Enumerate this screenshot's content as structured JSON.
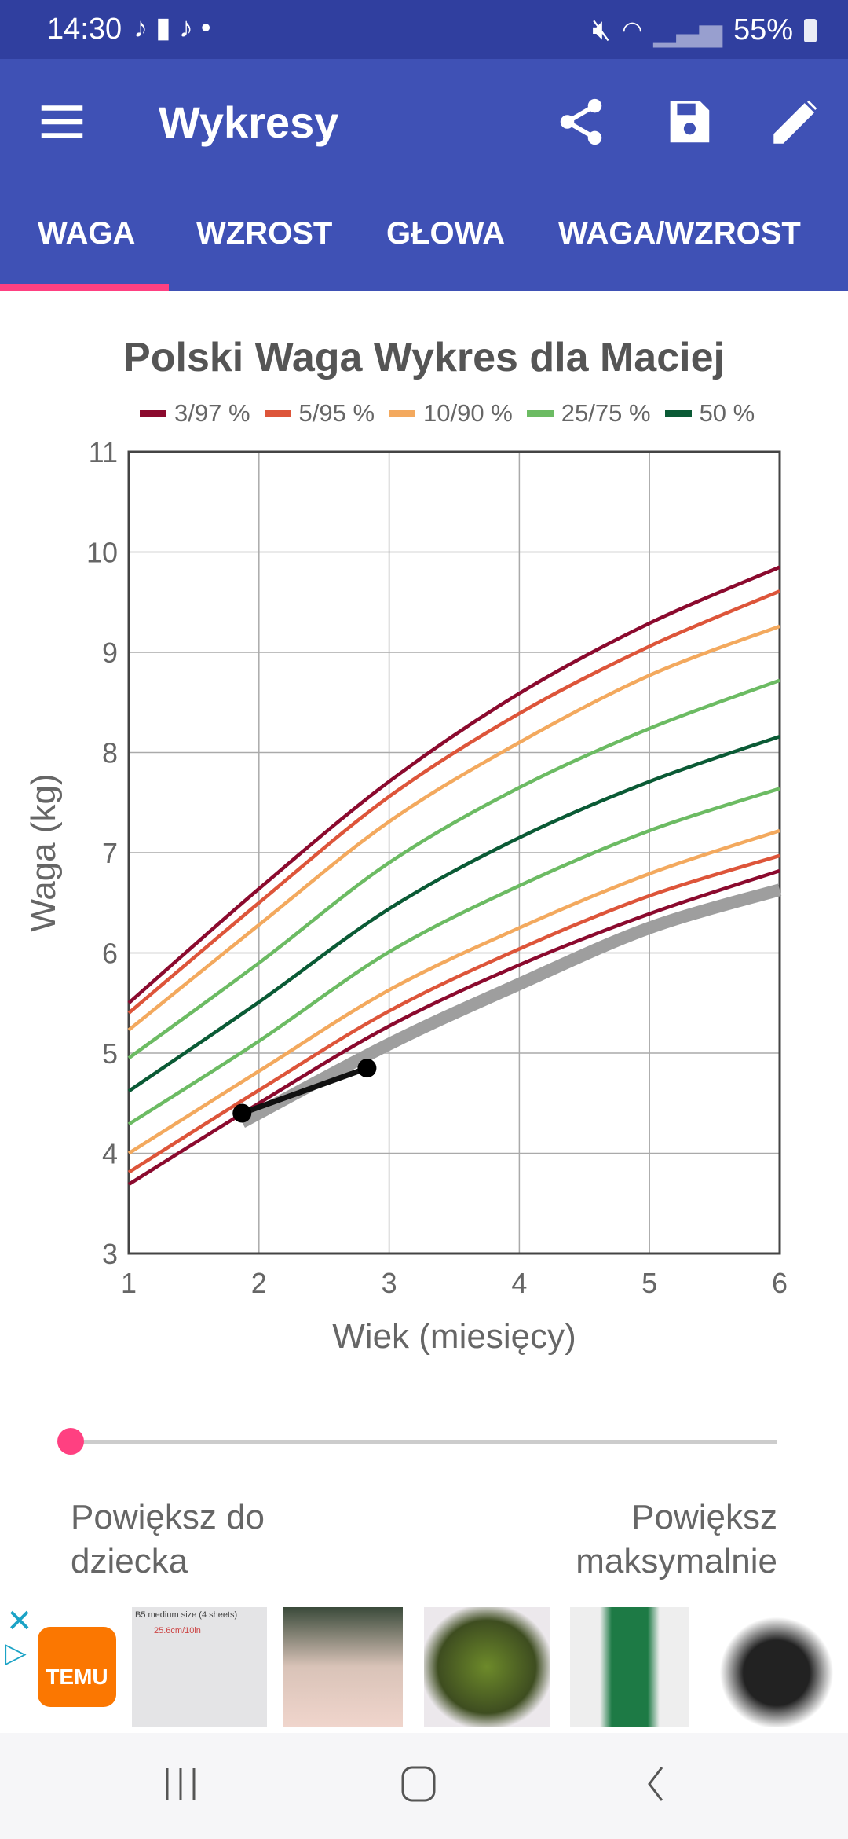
{
  "status_bar": {
    "time": "14:30",
    "battery": "55%",
    "icons": [
      "tiktok-icon",
      "shopping-bag-icon",
      "tiktok-icon",
      "dot-icon",
      "battery-saver-icon",
      "mute-icon",
      "wifi-icon",
      "signal-icon",
      "battery-icon"
    ]
  },
  "app_bar": {
    "title": "Wykresy",
    "icons": [
      "menu-icon",
      "share-icon",
      "save-icon",
      "edit-icon"
    ]
  },
  "tabs": [
    {
      "label": "WAGA",
      "active": true
    },
    {
      "label": "WZROST"
    },
    {
      "label": "GŁOWA"
    },
    {
      "label": "WAGA/WZROST"
    }
  ],
  "colors": {
    "primary": "#3f51b5",
    "status": "#303f9f",
    "accent": "#ff4081"
  },
  "chart_data": {
    "type": "line",
    "title": "Polski Waga Wykres dla Maciej",
    "xlabel": "Wiek (miesięcy)",
    "ylabel": "Waga (kg)",
    "xlim": [
      1,
      6
    ],
    "ylim": [
      3,
      11
    ],
    "xticks": [
      "1",
      "2",
      "3",
      "4",
      "5",
      "6"
    ],
    "yticks": [
      "3",
      "4",
      "5",
      "6",
      "7",
      "8",
      "9",
      "10",
      "11"
    ],
    "grid": true,
    "legend_position": "top",
    "legend": [
      {
        "label": "3/97 %",
        "color": "#8b0a2e"
      },
      {
        "label": "5/95 %",
        "color": "#dd553a"
      },
      {
        "label": "10/90 %",
        "color": "#f3a95e"
      },
      {
        "label": "25/75 %",
        "color": "#6cbb63"
      },
      {
        "label": "50 %",
        "color": "#0a5a35"
      }
    ],
    "x": [
      1,
      2,
      3,
      4,
      5,
      6
    ],
    "series": [
      {
        "name": "97",
        "color": "#8b0a2e",
        "values": [
          5.5,
          6.64,
          7.71,
          8.59,
          9.29,
          9.85
        ]
      },
      {
        "name": "95",
        "color": "#dd553a",
        "values": [
          5.4,
          6.5,
          7.56,
          8.39,
          9.06,
          9.61
        ]
      },
      {
        "name": "90",
        "color": "#f3a95e",
        "values": [
          5.23,
          6.28,
          7.31,
          8.1,
          8.77,
          9.26
        ]
      },
      {
        "name": "75",
        "color": "#6cbb63",
        "values": [
          4.95,
          5.9,
          6.9,
          7.65,
          8.24,
          8.72
        ]
      },
      {
        "name": "50",
        "color": "#0a5a35",
        "values": [
          4.62,
          5.51,
          6.44,
          7.15,
          7.71,
          8.16
        ]
      },
      {
        "name": "25",
        "color": "#6cbb63",
        "values": [
          4.29,
          5.12,
          6.01,
          6.67,
          7.22,
          7.64
        ]
      },
      {
        "name": "10",
        "color": "#f3a95e",
        "values": [
          4.0,
          4.82,
          5.63,
          6.25,
          6.79,
          7.22
        ]
      },
      {
        "name": "5",
        "color": "#dd553a",
        "values": [
          3.81,
          4.63,
          5.42,
          6.04,
          6.57,
          6.97
        ]
      },
      {
        "name": "3",
        "color": "#8b0a2e",
        "values": [
          3.69,
          4.5,
          5.27,
          5.88,
          6.39,
          6.82
        ]
      }
    ],
    "projection": {
      "color": "#9e9e9e",
      "x": [
        1.87,
        3,
        4,
        5,
        6
      ],
      "values": [
        4.31,
        5.09,
        5.69,
        6.25,
        6.63
      ]
    },
    "child": {
      "color": "#000000",
      "x": [
        1.87,
        2.83
      ],
      "values": [
        4.4,
        4.85
      ]
    }
  },
  "slider": {
    "value": 0
  },
  "zoom_labels": {
    "left": "Powiększ do dziecka",
    "right": "Powiększ maksymalnie"
  },
  "ad": {
    "brand": "TEMU",
    "caption1": "B5 medium size (4 sheets)",
    "caption2": "25.6cm/10in"
  }
}
